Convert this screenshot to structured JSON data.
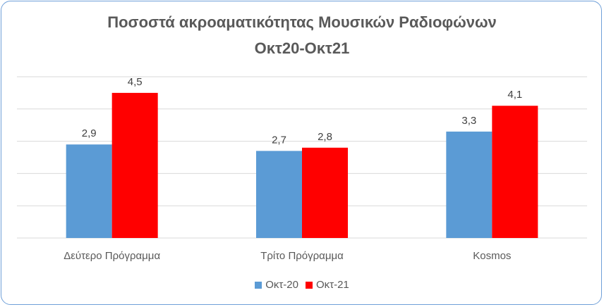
{
  "chart_data": {
    "type": "bar",
    "title": "Ποσοστά ακροαματικότητας Μουσικών Ραδιοφώνων",
    "subtitle": "Οκτ20-Οκτ21",
    "categories": [
      "Δεύτερο Πρόγραμμα",
      "Τρίτο Πρόγραμμα",
      "Kosmos"
    ],
    "series": [
      {
        "name": "Οκτ-20",
        "values": [
          2.9,
          2.7,
          3.3
        ],
        "labels": [
          "2,9",
          "2,7",
          "3,3"
        ],
        "color": "#5b9bd5"
      },
      {
        "name": "Οκτ-21",
        "values": [
          4.5,
          2.8,
          4.1
        ],
        "labels": [
          "4,5",
          "2,8",
          "4,1"
        ],
        "color": "#ff0000"
      }
    ],
    "ylim": [
      0,
      5
    ],
    "grid": true,
    "legend": "bottom"
  }
}
